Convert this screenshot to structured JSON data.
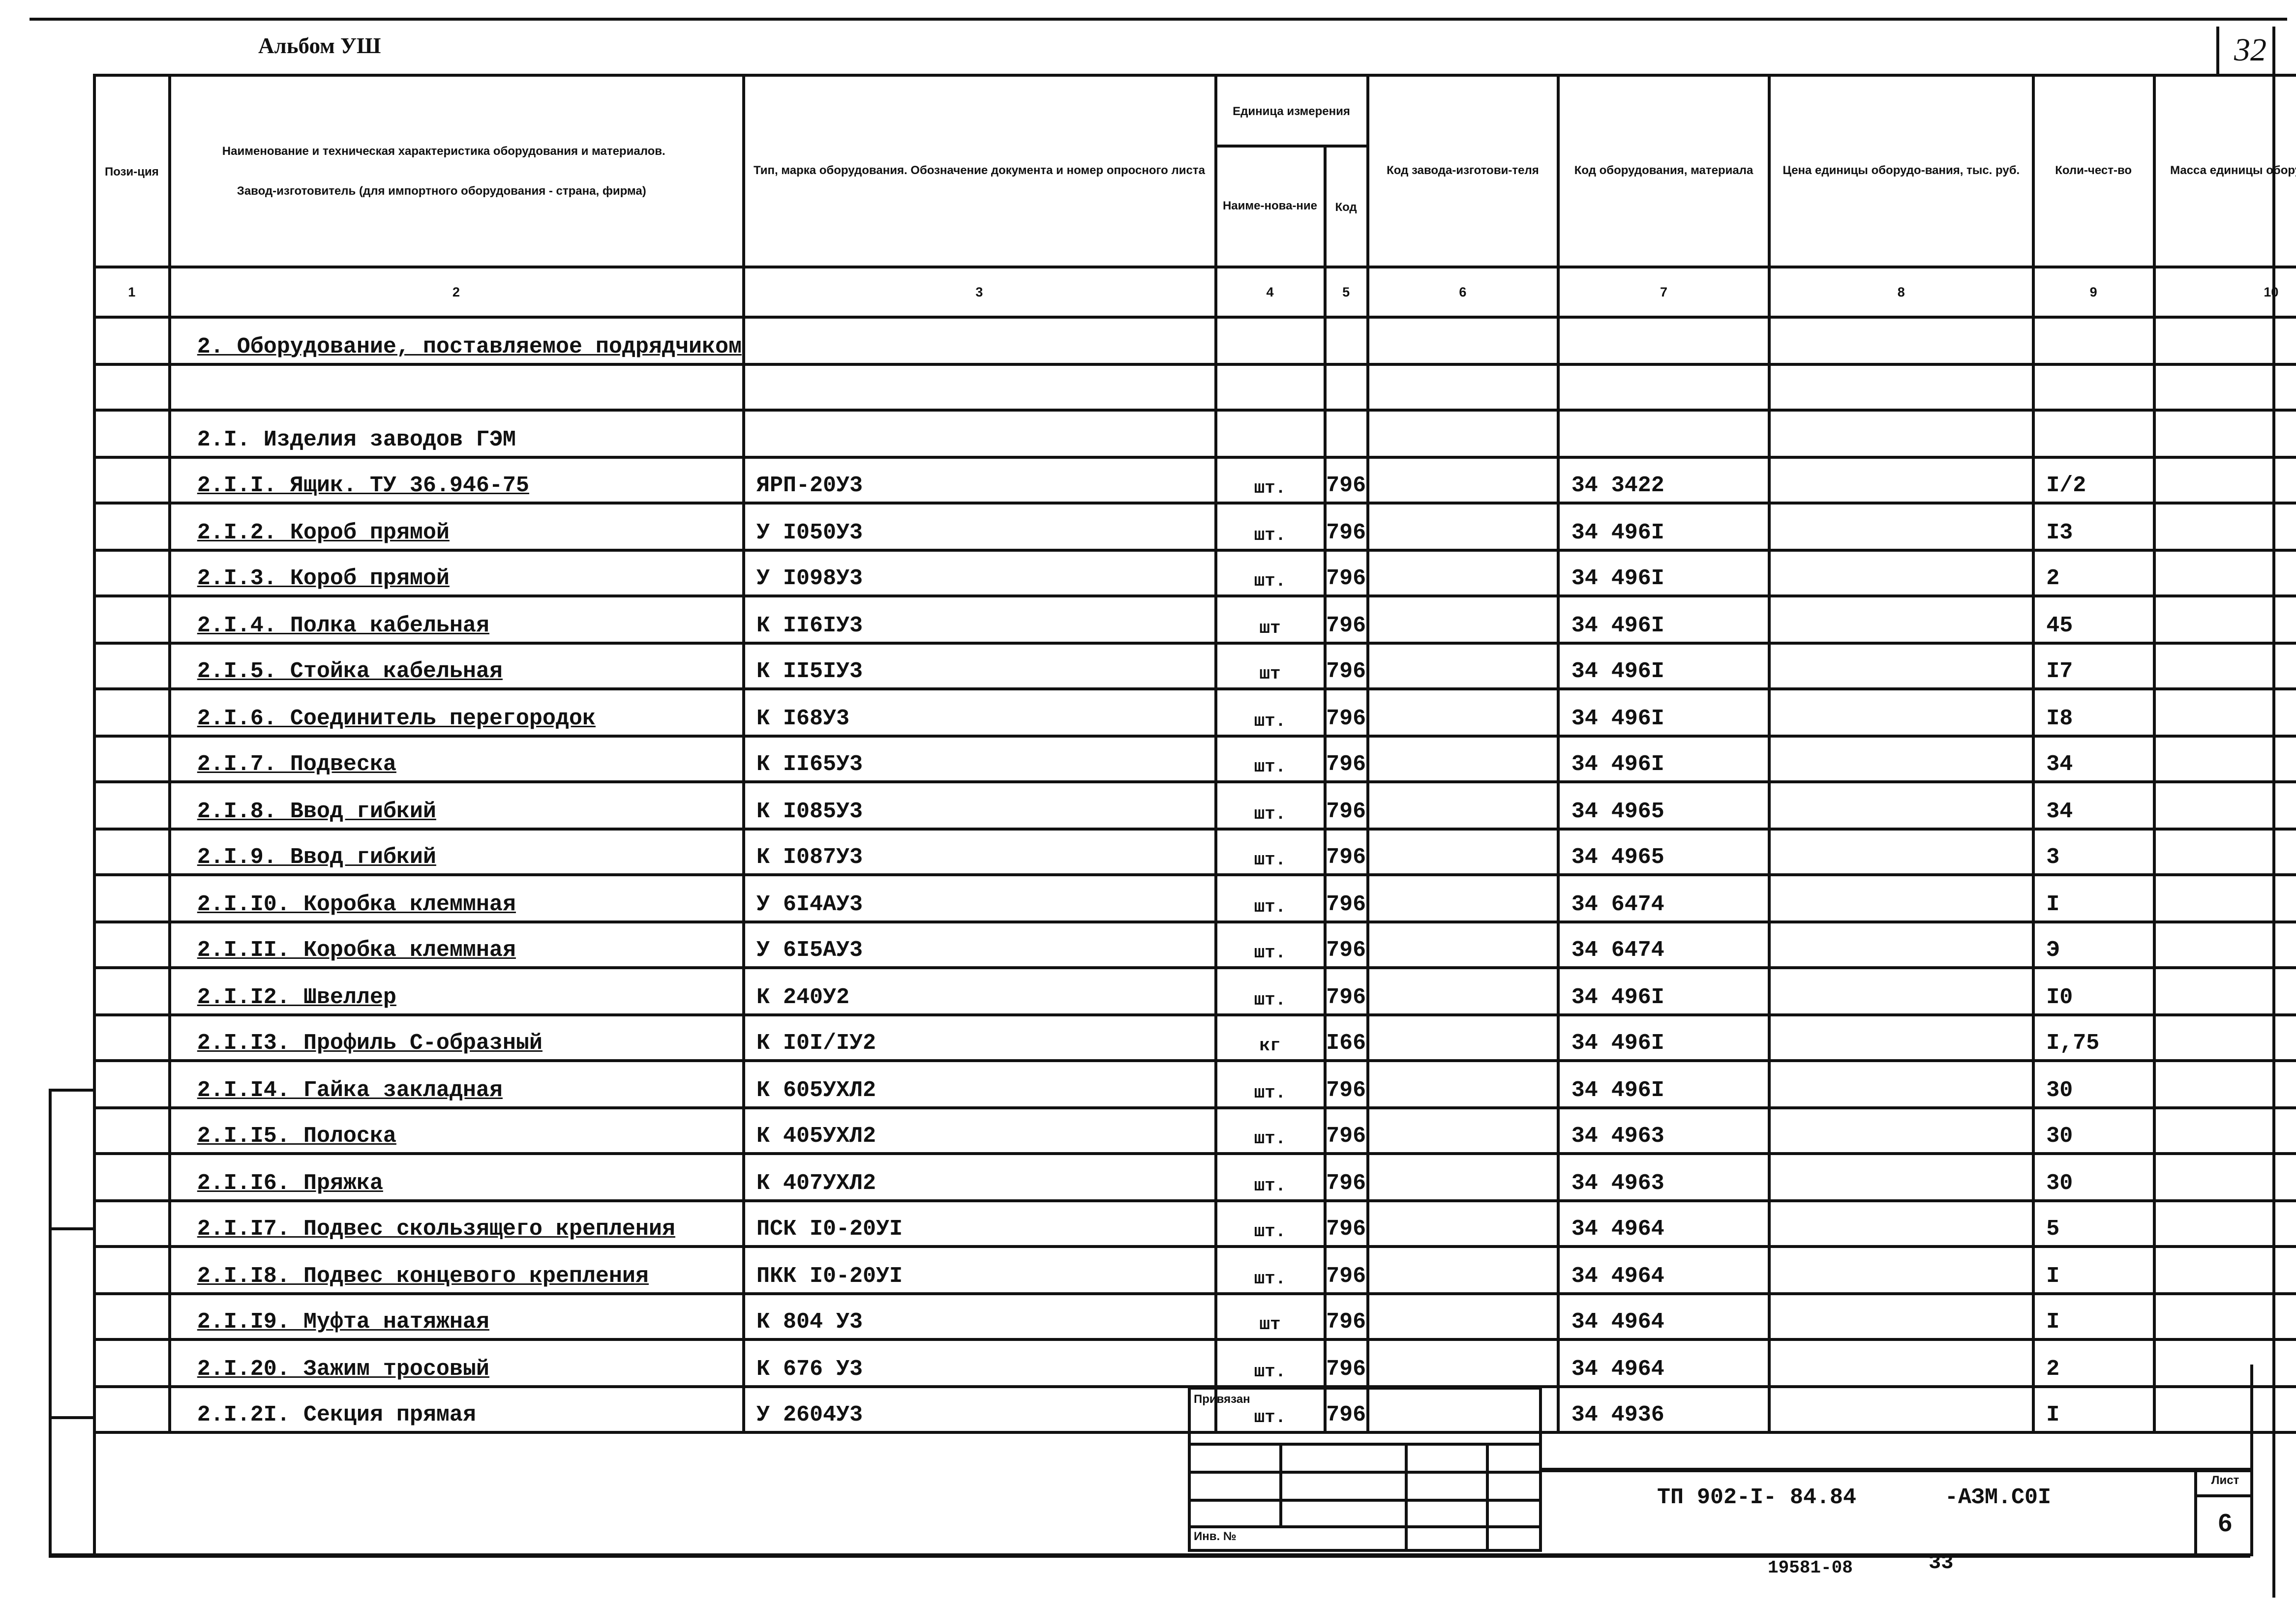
{
  "album_title": "Альбом УШ",
  "corner_number": "32",
  "header": {
    "c1": "Пози-ция",
    "c2_line1": "Наименование и техническая характеристика оборудования и материалов.",
    "c2_line2": "Завод-изготовитель (для импортного оборудования - страна, фирма)",
    "c3": "Тип, марка оборудования. Обозначение документа и номер опросного листа",
    "unit_group": "Единица измерения",
    "c4": "Наиме-нова-ние",
    "c5": "Код",
    "c6": "Код завода-изготови-теля",
    "c7": "Код оборудования, материала",
    "c8": "Цена единицы оборудо-вания, тыс. руб.",
    "c9": "Коли-чест-во",
    "c10": "Масса единицы оборудо-вания, кг"
  },
  "column_numbers": [
    "1",
    "2",
    "3",
    "4",
    "5",
    "6",
    "7",
    "8",
    "9",
    "10"
  ],
  "rows": [
    {
      "name": "2. Оборудование, поставляемое подрядчиком",
      "type": "",
      "unit": "",
      "code": "",
      "equip_code": "",
      "qty": "",
      "underline": true
    },
    {
      "name": "",
      "type": "",
      "unit": "",
      "code": "",
      "equip_code": "",
      "qty": "",
      "underline": false
    },
    {
      "name": "2.I. Изделия заводов ГЭМ",
      "type": "",
      "unit": "",
      "code": "",
      "equip_code": "",
      "qty": "",
      "underline": false
    },
    {
      "name": "2.I.I. Ящик. ТУ 36.946-75",
      "type": "ЯРП-20У3",
      "unit": "шт.",
      "code": "796",
      "equip_code": "34 3422",
      "qty": "I/2",
      "underline": true
    },
    {
      "name": "2.I.2. Короб прямой",
      "type": "У I050У3",
      "unit": "шт.",
      "code": "796",
      "equip_code": "34 496I",
      "qty": "I3",
      "underline": true
    },
    {
      "name": "2.I.3. Короб прямой",
      "type": "У I098У3",
      "unit": "шт.",
      "code": "796",
      "equip_code": "34 496I",
      "qty": "2",
      "underline": true
    },
    {
      "name": "2.I.4. Полка кабельная",
      "type": "К II6IУ3",
      "unit": "шт",
      "code": "796",
      "equip_code": "34 496I",
      "qty": "45",
      "underline": true
    },
    {
      "name": "2.I.5. Стойка кабельная",
      "type": "К II5IУ3",
      "unit": "шт",
      "code": "796",
      "equip_code": "34 496I",
      "qty": "I7",
      "underline": true
    },
    {
      "name": "2.I.6. Соединитель перегородок",
      "type": "К I68У3",
      "unit": "шт.",
      "code": "796",
      "equip_code": "34 496I",
      "qty": "I8",
      "underline": true
    },
    {
      "name": "2.I.7. Подвеска",
      "type": "К II65У3",
      "unit": "шт.",
      "code": "796",
      "equip_code": "34 496I",
      "qty": "34",
      "underline": true
    },
    {
      "name": "2.I.8. Ввод гибкий",
      "type": "К I085У3",
      "unit": "шт.",
      "code": "796",
      "equip_code": "34 4965",
      "qty": "34",
      "underline": true
    },
    {
      "name": "2.I.9. Ввод гибкий",
      "type": "К I087У3",
      "unit": "шт.",
      "code": "796",
      "equip_code": "34 4965",
      "qty": "3",
      "underline": true
    },
    {
      "name": "2.I.I0. Коробка клеммная",
      "type": "У 6I4АУ3",
      "unit": "шт.",
      "code": "796",
      "equip_code": "34 6474",
      "qty": "I",
      "underline": true
    },
    {
      "name": "2.I.II. Коробка клеммная",
      "type": "У 6I5АУ3",
      "unit": "шт.",
      "code": "796",
      "equip_code": "34 6474",
      "qty": "Э",
      "underline": true
    },
    {
      "name": "2.I.I2. Швеллер",
      "type": "К 240У2",
      "unit": "шт.",
      "code": "796",
      "equip_code": "34 496I",
      "qty": "I0",
      "underline": true
    },
    {
      "name": "2.I.I3. Профиль С-образный",
      "type": "К I0I/IУ2",
      "unit": "кг",
      "code": "I66",
      "equip_code": "34 496I",
      "qty": "I,75",
      "underline": true
    },
    {
      "name": "2.I.I4. Гайка закладная",
      "type": "К 605УХЛ2",
      "unit": "шт.",
      "code": "796",
      "equip_code": "34 496I",
      "qty": "30",
      "underline": true
    },
    {
      "name": "2.I.I5. Полоска",
      "type": "К 405УХЛ2",
      "unit": "шт.",
      "code": "796",
      "equip_code": "34 4963",
      "qty": "30",
      "underline": true
    },
    {
      "name": "2.I.I6. Пряжка",
      "type": "К 407УХЛ2",
      "unit": "шт.",
      "code": "796",
      "equip_code": "34 4963",
      "qty": "30",
      "underline": true
    },
    {
      "name": "2.I.I7. Подвес скользящего крепления",
      "type": "ПСК I0-20УI",
      "unit": "шт.",
      "code": "796",
      "equip_code": "34 4964",
      "qty": "5",
      "underline": true
    },
    {
      "name": "2.I.I8. Подвес концевого крепления",
      "type": "ПКК I0-20УI",
      "unit": "шт.",
      "code": "796",
      "equip_code": "34 4964",
      "qty": "I",
      "underline": true
    },
    {
      "name": "2.I.I9. Муфта натяжная",
      "type": "К 804 У3",
      "unit": "шт",
      "code": "796",
      "equip_code": "34 4964",
      "qty": "I",
      "underline": true
    },
    {
      "name": "2.I.20. Зажим тросовый",
      "type": "К 676 У3",
      "unit": "шт.",
      "code": "796",
      "equip_code": "34 4964",
      "qty": "2",
      "underline": true
    },
    {
      "name": "2.I.2I. Секция прямая",
      "type": "У 2604У3",
      "unit": "шт.",
      "code": "796",
      "equip_code": "34 4936",
      "qty": "I",
      "underline": false
    }
  ],
  "stamp": {
    "attached_label": "Привязан",
    "inv_label": "Инв. №",
    "doc_code": "ТП 902-I- 84.84",
    "doc_suffix": "-АЗМ.С0I",
    "sheet_label": "Лист",
    "sheet_number": "6"
  },
  "footer": {
    "archive_number": "19581-08",
    "page_number": "33"
  }
}
